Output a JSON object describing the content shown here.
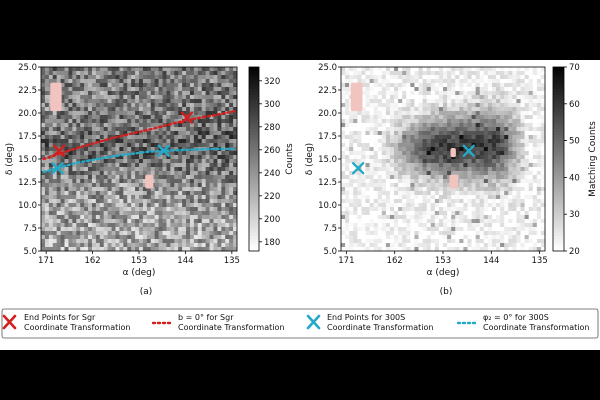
{
  "figure": {
    "legend": {
      "entries": [
        {
          "marker": "x",
          "color": "#d41f1f",
          "line1": "End Points for Sgr",
          "line2": "Coordinate Transformation"
        },
        {
          "marker": "dotted",
          "color": "#d41f1f",
          "line1": "b = 0° for Sgr",
          "line2": "Coordinate Transformation"
        },
        {
          "marker": "x",
          "color": "#22aac8",
          "line1": "End Points for 300S",
          "line2": "Coordinate Transformation"
        },
        {
          "marker": "dotted",
          "color": "#22aac8",
          "line1": "φ₂ = 0° for 300S",
          "line2": "Coordinate Transformation"
        }
      ]
    }
  },
  "chart_data": [
    {
      "panel_label": "(a)",
      "type": "heatmap",
      "xlabel": "α (deg)",
      "ylabel": "δ (deg)",
      "x_ticks": [
        "171",
        "162",
        "153",
        "144",
        "135"
      ],
      "x_tick_values": [
        171,
        162,
        153,
        144,
        135
      ],
      "xlim": [
        172,
        134
      ],
      "y_ticks": [
        "5.0",
        "7.5",
        "10.0",
        "12.5",
        "15.0",
        "17.5",
        "20.0",
        "22.5",
        "25.0"
      ],
      "y_tick_values": [
        5.0,
        7.5,
        10.0,
        12.5,
        15.0,
        17.5,
        20.0,
        22.5,
        25.0
      ],
      "ylim": [
        5,
        25
      ],
      "colorbar": {
        "label": "Counts",
        "ticks": [
          "180",
          "200",
          "220",
          "240",
          "260",
          "280",
          "300",
          "320"
        ],
        "tick_values": [
          180,
          200,
          220,
          240,
          260,
          280,
          300,
          320
        ],
        "range": [
          172,
          332
        ]
      },
      "masks": [
        {
          "ra": [
            170.2,
            168.0
          ],
          "dec": [
            20.2,
            23.3
          ]
        },
        {
          "ra": [
            151.8,
            150.2
          ],
          "dec": [
            11.8,
            13.3
          ]
        }
      ],
      "series": [
        {
          "marker": "x",
          "color": "#d41f1f",
          "points": [
            [
              168.5,
              15.9
            ],
            [
              143.7,
              19.5
            ]
          ]
        },
        {
          "marker": "dotted",
          "color": "#d41f1f",
          "points": [
            [
              171.5,
              15.0
            ],
            [
              165,
              16.2
            ],
            [
              158,
              17.3
            ],
            [
              151,
              18.2
            ],
            [
              144,
              19.2
            ],
            [
              138,
              19.8
            ],
            [
              134.5,
              20.2
            ]
          ]
        },
        {
          "marker": "x",
          "color": "#22aac8",
          "points": [
            [
              168.8,
              14.0
            ],
            [
              148.2,
              15.9
            ]
          ]
        },
        {
          "marker": "dotted",
          "color": "#22aac8",
          "points": [
            [
              171.5,
              13.6
            ],
            [
              165,
              14.6
            ],
            [
              158,
              15.3
            ],
            [
              151,
              15.8
            ],
            [
              144,
              16.0
            ],
            [
              138,
              16.1
            ],
            [
              134.5,
              16.1
            ]
          ]
        }
      ]
    },
    {
      "panel_label": "(b)",
      "type": "heatmap",
      "xlabel": "α (deg)",
      "ylabel": "δ (deg)",
      "x_ticks": [
        "171",
        "162",
        "153",
        "144",
        "135"
      ],
      "x_tick_values": [
        171,
        162,
        153,
        144,
        135
      ],
      "xlim": [
        172,
        134
      ],
      "y_ticks": [
        "5.0",
        "7.5",
        "10.0",
        "12.5",
        "15.0",
        "17.5",
        "20.0",
        "22.5",
        "25.0"
      ],
      "y_tick_values": [
        5.0,
        7.5,
        10.0,
        12.5,
        15.0,
        17.5,
        20.0,
        22.5,
        25.0
      ],
      "ylim": [
        5,
        25
      ],
      "colorbar": {
        "label": "Matching Counts",
        "ticks": [
          "20",
          "30",
          "40",
          "50",
          "60",
          "70"
        ],
        "tick_values": [
          20,
          30,
          40,
          50,
          60,
          70
        ],
        "range": [
          20,
          70
        ]
      },
      "masks": [
        {
          "ra": [
            170.2,
            168.0
          ],
          "dec": [
            20.2,
            23.3
          ]
        },
        {
          "ra": [
            151.8,
            150.2
          ],
          "dec": [
            11.8,
            13.3
          ]
        },
        {
          "ra": [
            151.6,
            150.6
          ],
          "dec": [
            15.2,
            16.2
          ]
        }
      ],
      "series": [
        {
          "marker": "x",
          "color": "#22aac8",
          "points": [
            [
              168.8,
              14.0
            ],
            [
              148.2,
              15.9
            ]
          ]
        }
      ]
    }
  ]
}
